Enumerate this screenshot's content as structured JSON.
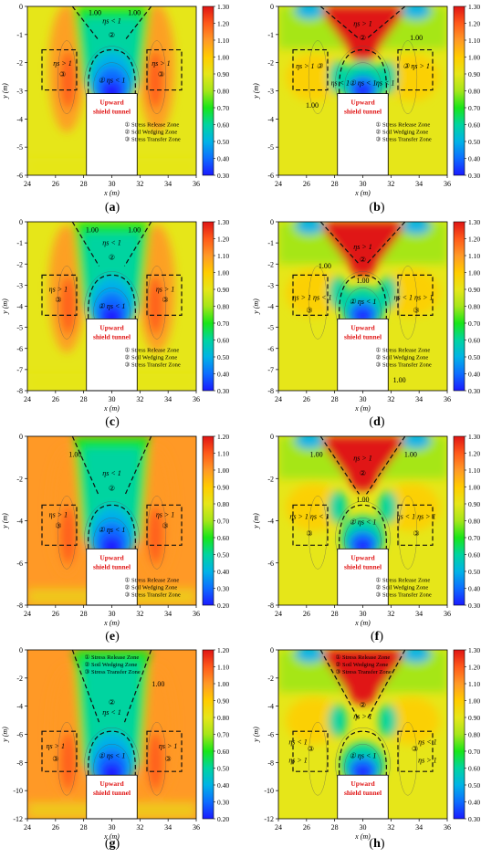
{
  "colors": {
    "stops": [
      "#1a1aff",
      "#0d6dff",
      "#00b3e6",
      "#00d4a0",
      "#19e619",
      "#a6e619",
      "#e6e619",
      "#ffcc00",
      "#ff9926",
      "#ff5a1a",
      "#e01414"
    ],
    "tunnel_title": "#e01414"
  },
  "common": {
    "tunnel_line1": "Upward",
    "tunnel_line2": "shield tunnel",
    "zone_legend": [
      "① Stress Release Zone",
      "② Soil Wedging Zone",
      "③ Stress Transfer Zone"
    ],
    "y_axis_label": "y (m)",
    "x_axis_label": "x (m)"
  },
  "panels": [
    {
      "label_pre": "(",
      "label_letter": "a",
      "label_post": ")",
      "chart_data": {
        "type": "heatmap",
        "xlim": [
          24,
          36
        ],
        "ylim": [
          -6,
          0
        ],
        "x_ticks": [
          "24",
          "26",
          "28",
          "30",
          "32",
          "34",
          "36"
        ],
        "y_ticks": [
          "0",
          "-1",
          "-2",
          "-3",
          "-4",
          "-5",
          "-6"
        ],
        "colorbar_ticks": [
          "1.30",
          "1.20",
          "1.10",
          "1.00",
          "0.90",
          "0.80",
          "0.70",
          "0.60",
          "0.50",
          "0.40",
          "0.30"
        ],
        "tunnel": {
          "x": [
            28.2,
            31.8
          ],
          "y_top": -3.1
        },
        "annotations": [
          {
            "text": "ηs < 1",
            "x": 30,
            "y": -0.6
          },
          {
            "text": "②",
            "x": 30,
            "y": -1.1
          },
          {
            "text": "ηs > 1",
            "x": 26.5,
            "y": -2.1
          },
          {
            "text": "③",
            "x": 26.5,
            "y": -2.5
          },
          {
            "text": "ηs > 1",
            "x": 33.5,
            "y": -2.1
          },
          {
            "text": "③",
            "x": 33.5,
            "y": -2.5
          },
          {
            "text": "① ηs < 1",
            "x": 30,
            "y": -2.7
          },
          {
            "text": "1.00",
            "x": 28.8,
            "y": -0.3
          },
          {
            "text": "1.00",
            "x": 31.6,
            "y": -0.3
          }
        ]
      }
    },
    {
      "label_pre": "(",
      "label_letter": "b",
      "label_post": ")",
      "chart_data": {
        "type": "heatmap",
        "xlim": [
          24,
          36
        ],
        "ylim": [
          -6,
          0
        ],
        "x_ticks": [
          "24",
          "26",
          "28",
          "30",
          "32",
          "34",
          "36"
        ],
        "y_ticks": [
          "0",
          "-1",
          "-2",
          "-3",
          "-4",
          "-5",
          "-6"
        ],
        "colorbar_ticks": [
          "1.30",
          "1.20",
          "1.10",
          "1.00",
          "0.90",
          "0.80",
          "0.70",
          "0.60",
          "0.50",
          "0.40",
          "0.30"
        ],
        "tunnel": {
          "x": [
            28.2,
            31.8
          ],
          "y_top": -3.1
        },
        "annotations": [
          {
            "text": "ηs > 1",
            "x": 30,
            "y": -0.7
          },
          {
            "text": "②",
            "x": 30,
            "y": -1.2
          },
          {
            "text": "ηs > 1 ③",
            "x": 26.2,
            "y": -2.2
          },
          {
            "text": "③ ηs > 1",
            "x": 33.8,
            "y": -2.2
          },
          {
            "text": "ηs < 1",
            "x": 28.4,
            "y": -2.8
          },
          {
            "text": "ηs < 1",
            "x": 31.6,
            "y": -2.8
          },
          {
            "text": "① ηs < 1",
            "x": 30,
            "y": -2.8
          },
          {
            "text": "1.00",
            "x": 33.8,
            "y": -1.2
          },
          {
            "text": "1.00",
            "x": 26.4,
            "y": -3.6
          }
        ]
      }
    },
    {
      "label_pre": "(",
      "label_letter": "c",
      "label_post": ")",
      "chart_data": {
        "type": "heatmap",
        "xlim": [
          24,
          36
        ],
        "ylim": [
          -8,
          0
        ],
        "x_ticks": [
          "24",
          "26",
          "28",
          "30",
          "32",
          "34",
          "36"
        ],
        "y_ticks": [
          "0",
          "-1",
          "-2",
          "-3",
          "-4",
          "-5",
          "-6",
          "-7",
          "-8"
        ],
        "colorbar_ticks": [
          "1.30",
          "1.20",
          "1.10",
          "1.00",
          "0.90",
          "0.80",
          "0.70",
          "0.60",
          "0.50",
          "0.40",
          "0.30"
        ],
        "tunnel": {
          "x": [
            28.2,
            31.8
          ],
          "y_top": -4.6
        },
        "annotations": [
          {
            "text": "ηs < 1",
            "x": 30,
            "y": -1.1
          },
          {
            "text": "②",
            "x": 30,
            "y": -1.8
          },
          {
            "text": "ηs > 1",
            "x": 26.2,
            "y": -3.3
          },
          {
            "text": "③",
            "x": 26.2,
            "y": -3.8
          },
          {
            "text": "ηs > 1",
            "x": 33.8,
            "y": -3.3
          },
          {
            "text": "③",
            "x": 33.8,
            "y": -3.8
          },
          {
            "text": "① ηs < 1",
            "x": 30,
            "y": -4.1
          },
          {
            "text": "1.00",
            "x": 28.6,
            "y": -0.5
          },
          {
            "text": "1.00",
            "x": 31.6,
            "y": -0.5
          }
        ]
      }
    },
    {
      "label_pre": "(",
      "label_letter": "d",
      "label_post": ")",
      "chart_data": {
        "type": "heatmap",
        "xlim": [
          24,
          36
        ],
        "ylim": [
          -8,
          0
        ],
        "x_ticks": [
          "24",
          "26",
          "28",
          "30",
          "32",
          "34",
          "36"
        ],
        "y_ticks": [
          "0",
          "-1",
          "-2",
          "-3",
          "-4",
          "-5",
          "-6",
          "-7",
          "-8"
        ],
        "colorbar_ticks": [
          "1.30",
          "1.20",
          "1.10",
          "1.00",
          "0.90",
          "0.80",
          "0.70",
          "0.60",
          "0.50",
          "0.40",
          "0.30"
        ],
        "tunnel": {
          "x": [
            28.2,
            31.8
          ],
          "y_top": -4.6
        },
        "annotations": [
          {
            "text": "ηs > 1",
            "x": 30,
            "y": -1.3
          },
          {
            "text": "②",
            "x": 30,
            "y": -1.9
          },
          {
            "text": "ηs > 1 ηs < 1",
            "x": 26.4,
            "y": -3.7
          },
          {
            "text": "③",
            "x": 26.2,
            "y": -4.3
          },
          {
            "text": "ηs < 1 ηs > 1",
            "x": 33.6,
            "y": -3.7
          },
          {
            "text": "③",
            "x": 33.8,
            "y": -4.3
          },
          {
            "text": "① ηs < 1",
            "x": 30,
            "y": -3.9
          },
          {
            "text": "1.00",
            "x": 27.3,
            "y": -2.2
          },
          {
            "text": "1.00",
            "x": 30,
            "y": -2.9
          },
          {
            "text": "1.00",
            "x": 32.6,
            "y": -7.6
          }
        ]
      }
    },
    {
      "label_pre": "(",
      "label_letter": "e",
      "label_post": ")",
      "chart_data": {
        "type": "heatmap",
        "xlim": [
          24,
          36
        ],
        "ylim": [
          -9,
          0
        ],
        "x_ticks": [
          "24",
          "26",
          "28",
          "30",
          "32",
          "34",
          "36"
        ],
        "y_ticks": [
          "0",
          "-2",
          "-4",
          "-6",
          "-8"
        ],
        "colorbar_ticks": [
          "1.20",
          "1.10",
          "1.00",
          "0.90",
          "0.80",
          "0.70",
          "0.60",
          "0.50",
          "0.40",
          "0.30",
          "0.20"
        ],
        "tunnel": {
          "x": [
            28.2,
            31.8
          ],
          "y_top": -6.0
        },
        "annotations": [
          {
            "text": "ηs < 1",
            "x": 30,
            "y": -2.1
          },
          {
            "text": "②",
            "x": 30,
            "y": -2.9
          },
          {
            "text": "ηs > 1",
            "x": 26.2,
            "y": -4.3
          },
          {
            "text": "③",
            "x": 26.2,
            "y": -4.9
          },
          {
            "text": "ηs > 1",
            "x": 33.8,
            "y": -4.3
          },
          {
            "text": "③",
            "x": 33.8,
            "y": -4.9
          },
          {
            "text": "① ηs < 1",
            "x": 30,
            "y": -5.1
          },
          {
            "text": "1.00",
            "x": 27.4,
            "y": -1.1
          }
        ]
      }
    },
    {
      "label_pre": "(",
      "label_letter": "f",
      "label_post": ")",
      "chart_data": {
        "type": "heatmap",
        "xlim": [
          24,
          36
        ],
        "ylim": [
          -9,
          0
        ],
        "x_ticks": [
          "24",
          "26",
          "28",
          "30",
          "32",
          "34",
          "36"
        ],
        "y_ticks": [
          "0",
          "-2",
          "-4",
          "-6",
          "-8"
        ],
        "colorbar_ticks": [
          "1.30",
          "1.20",
          "1.10",
          "1.00",
          "0.90",
          "0.80",
          "0.70",
          "0.60",
          "0.50",
          "0.40",
          "0.30"
        ],
        "tunnel": {
          "x": [
            28.2,
            31.8
          ],
          "y_top": -6.0
        },
        "annotations": [
          {
            "text": "ηs > 1",
            "x": 30,
            "y": -1.3
          },
          {
            "text": "②",
            "x": 30,
            "y": -2.1
          },
          {
            "text": "ηs > 1 ηs < 1",
            "x": 26.2,
            "y": -4.4
          },
          {
            "text": "③",
            "x": 26.2,
            "y": -5.3
          },
          {
            "text": "ηs < 1 ηs > 1",
            "x": 33.8,
            "y": -4.4
          },
          {
            "text": "③",
            "x": 33.8,
            "y": -5.3
          },
          {
            "text": "① ηs < 1",
            "x": 30,
            "y": -4.7
          },
          {
            "text": "1.00",
            "x": 26.7,
            "y": -1.1
          },
          {
            "text": "1.00",
            "x": 33.4,
            "y": -1.1
          },
          {
            "text": "1.00",
            "x": 30,
            "y": -3.5
          }
        ]
      }
    },
    {
      "label_pre": "(",
      "label_letter": "g",
      "label_post": ")",
      "chart_data": {
        "type": "heatmap",
        "xlim": [
          24,
          36
        ],
        "ylim": [
          -12,
          0
        ],
        "x_ticks": [
          "24",
          "26",
          "28",
          "30",
          "32",
          "34",
          "36"
        ],
        "y_ticks": [
          "0",
          "-2",
          "-4",
          "-6",
          "-8",
          "-10",
          "-12"
        ],
        "colorbar_ticks": [
          "1.20",
          "1.10",
          "1.00",
          "0.90",
          "0.80",
          "0.70",
          "0.60",
          "0.50",
          "0.40",
          "0.30",
          "0.20"
        ],
        "tunnel": {
          "x": [
            28.2,
            31.8
          ],
          "y_top": -8.9
        },
        "annotations": [
          {
            "text": "②",
            "x": 30,
            "y": -3.9
          },
          {
            "text": "ηs < 1",
            "x": 30,
            "y": -4.6
          },
          {
            "text": "ηs > 1",
            "x": 26,
            "y": -7
          },
          {
            "text": "③",
            "x": 26,
            "y": -7.9
          },
          {
            "text": "ηs > 1",
            "x": 34,
            "y": -7
          },
          {
            "text": "③",
            "x": 34,
            "y": -7.9
          },
          {
            "text": "① ηs < 1",
            "x": 30,
            "y": -7.7
          },
          {
            "text": "1.00",
            "x": 33.3,
            "y": -2.6
          }
        ]
      }
    },
    {
      "label_pre": "(",
      "label_letter": "h",
      "label_post": ")",
      "chart_data": {
        "type": "heatmap",
        "xlim": [
          24,
          36
        ],
        "ylim": [
          -12,
          0
        ],
        "x_ticks": [
          "24",
          "26",
          "28",
          "30",
          "32",
          "34",
          "36"
        ],
        "y_ticks": [
          "0",
          "-2",
          "-4",
          "-6",
          "-8",
          "-10",
          "-12"
        ],
        "colorbar_ticks": [
          "1.30",
          "1.20",
          "1.10",
          "1.00",
          "0.90",
          "0.80",
          "0.70",
          "0.60",
          "0.50",
          "0.40",
          "0.30"
        ],
        "tunnel": {
          "x": [
            28.2,
            31.8
          ],
          "y_top": -8.9
        },
        "annotations": [
          {
            "text": "②",
            "x": 30,
            "y": -4.1
          },
          {
            "text": "ηs > 1",
            "x": 30,
            "y": -4.9
          },
          {
            "text": "ηs < 1",
            "x": 25.4,
            "y": -6.7
          },
          {
            "text": "③",
            "x": 26.3,
            "y": -7.2
          },
          {
            "text": "ηs > 1",
            "x": 25.4,
            "y": -8.0
          },
          {
            "text": "ηs < 1",
            "x": 34.6,
            "y": -6.7
          },
          {
            "text": "③",
            "x": 33.7,
            "y": -7.2
          },
          {
            "text": "ηs > 1",
            "x": 34.6,
            "y": -8.0
          },
          {
            "text": "① ηs < 1",
            "x": 30,
            "y": -7.7
          }
        ]
      }
    }
  ]
}
